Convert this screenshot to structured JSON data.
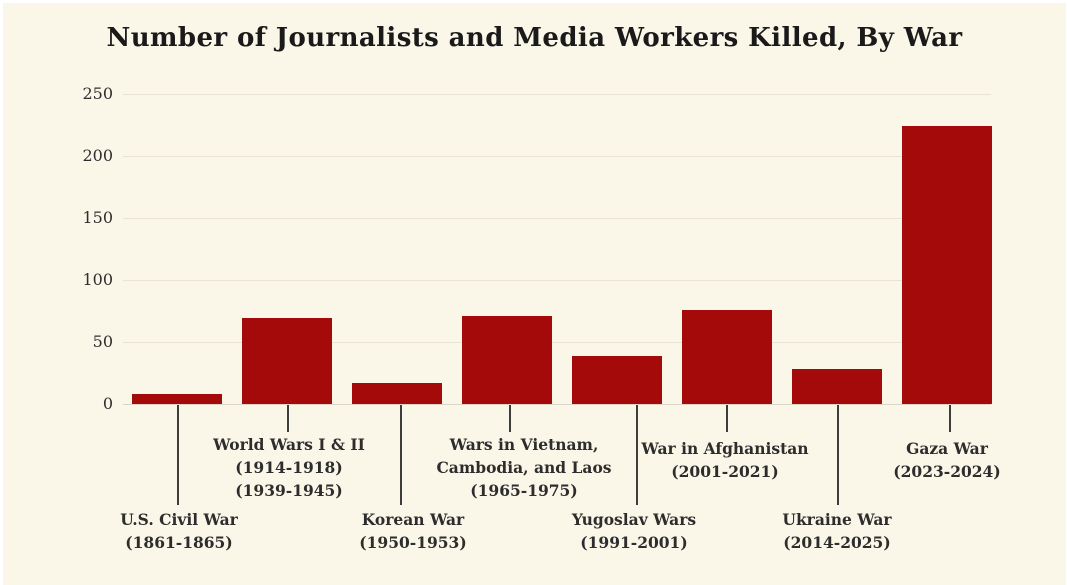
{
  "colors": {
    "background": "#faf6e8",
    "frame": "#ffffff",
    "bar": "#a40a0a",
    "gridline": "#e8e3d4",
    "axis_line": "#d9d4c5",
    "leader_line": "#3d3d3d",
    "title_text": "#1a1a1a",
    "label_text": "#2d2d2d",
    "tick_text": "#2e2e2e"
  },
  "chart_data": {
    "type": "bar",
    "title": "Number of Journalists and Media Workers Killed, By War",
    "xlabel": "",
    "ylabel": "",
    "ylim": [
      0,
      250
    ],
    "yticks": [
      0,
      50,
      100,
      150,
      200,
      250
    ],
    "grid": true,
    "legend": "none",
    "bar_color": "#a40a0a",
    "categories": [
      "U.S. Civil War (1861-1865)",
      "World Wars I & II (1914-1918) (1939-1945)",
      "Korean War (1950-1953)",
      "Wars in Vietnam, Cambodia, and Laos (1965-1975)",
      "Yugoslav Wars (1991-2001)",
      "War in Afghanistan (2001-2021)",
      "Ukraine War (2014-2025)",
      "Gaza War (2023-2024)"
    ],
    "values": [
      8,
      69,
      17,
      71,
      39,
      76,
      28,
      224
    ],
    "labels": [
      {
        "slug": "us-civil-war",
        "row": "lower",
        "lines": [
          "U.S. Civil War",
          "(1861-1865)"
        ]
      },
      {
        "slug": "world-wars-i-and-ii",
        "row": "upper",
        "lines": [
          "World Wars I & II",
          "(1914-1918)",
          "(1939-1945)"
        ]
      },
      {
        "slug": "korean-war",
        "row": "lower",
        "lines": [
          "Korean War",
          "(1950-1953)"
        ]
      },
      {
        "slug": "wars-in-vietnam-cambodia-laos",
        "row": "upper",
        "lines": [
          "Wars in Vietnam,",
          "Cambodia, and Laos",
          "(1965-1975)"
        ]
      },
      {
        "slug": "yugoslav-wars",
        "row": "lower",
        "lines": [
          "Yugoslav Wars",
          "(1991-2001)"
        ]
      },
      {
        "slug": "war-in-afghanistan",
        "row": "upper",
        "lines": [
          "War in Afghanistan",
          "(2001-2021)"
        ]
      },
      {
        "slug": "ukraine-war",
        "row": "lower",
        "lines": [
          "Ukraine War",
          "(2014-2025)"
        ]
      },
      {
        "slug": "gaza-war",
        "row": "upper",
        "lines": [
          "Gaza War",
          "(2023-2024)"
        ]
      }
    ]
  }
}
